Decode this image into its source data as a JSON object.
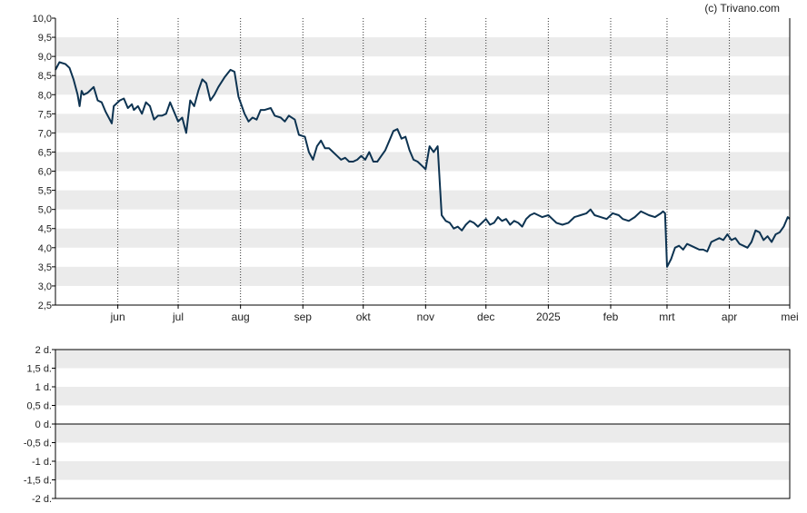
{
  "copyright": "(c) Trivano.com",
  "colors": {
    "line": "#0d3351",
    "band": "#ebebeb",
    "axis": "#000000",
    "vgrid": "#333333"
  },
  "chart_data": [
    {
      "type": "line",
      "title": "",
      "xlabel": "",
      "ylabel": "",
      "ylim": [
        2.5,
        10.0
      ],
      "xlim": [
        "2024-05-01",
        "2025-05-01"
      ],
      "grid": true,
      "legend": null,
      "ytick_labels": [
        "2,5",
        "3,0",
        "3,5",
        "4,0",
        "4,5",
        "5,0",
        "5,5",
        "6,0",
        "6,5",
        "7,0",
        "7,5",
        "8,0",
        "8,5",
        "9,0",
        "9,5",
        "10,0"
      ],
      "ytick_values": [
        2.5,
        3.0,
        3.5,
        4.0,
        4.5,
        5.0,
        5.5,
        6.0,
        6.5,
        7.0,
        7.5,
        8.0,
        8.5,
        9.0,
        9.5,
        10.0
      ],
      "xtick_labels": [
        "jun",
        "jul",
        "aug",
        "sep",
        "okt",
        "nov",
        "dec",
        "2025",
        "feb",
        "mrt",
        "apr",
        "mei"
      ],
      "xtick_dates": [
        "2024-06-01",
        "2024-07-01",
        "2024-08-01",
        "2024-09-01",
        "2024-10-01",
        "2024-11-01",
        "2024-12-01",
        "2025-01-01",
        "2025-02-01",
        "2025-03-01",
        "2025-04-01",
        "2025-05-01"
      ],
      "series": [
        {
          "points": [
            [
              "2024-05-01",
              8.65
            ],
            [
              "2024-05-03",
              8.85
            ],
            [
              "2024-05-06",
              8.8
            ],
            [
              "2024-05-08",
              8.7
            ],
            [
              "2024-05-10",
              8.4
            ],
            [
              "2024-05-12",
              8.0
            ],
            [
              "2024-05-13",
              7.7
            ],
            [
              "2024-05-14",
              8.1
            ],
            [
              "2024-05-15",
              8.0
            ],
            [
              "2024-05-17",
              8.05
            ],
            [
              "2024-05-18",
              8.1
            ],
            [
              "2024-05-20",
              8.2
            ],
            [
              "2024-05-22",
              7.85
            ],
            [
              "2024-05-24",
              7.8
            ],
            [
              "2024-05-26",
              7.55
            ],
            [
              "2024-05-28",
              7.35
            ],
            [
              "2024-05-29",
              7.25
            ],
            [
              "2024-05-30",
              7.7
            ],
            [
              "2024-06-02",
              7.85
            ],
            [
              "2024-06-04",
              7.9
            ],
            [
              "2024-06-06",
              7.65
            ],
            [
              "2024-06-08",
              7.75
            ],
            [
              "2024-06-09",
              7.6
            ],
            [
              "2024-06-11",
              7.7
            ],
            [
              "2024-06-13",
              7.5
            ],
            [
              "2024-06-15",
              7.8
            ],
            [
              "2024-06-17",
              7.7
            ],
            [
              "2024-06-19",
              7.35
            ],
            [
              "2024-06-21",
              7.45
            ],
            [
              "2024-06-23",
              7.45
            ],
            [
              "2024-06-25",
              7.5
            ],
            [
              "2024-06-27",
              7.8
            ],
            [
              "2024-06-29",
              7.55
            ],
            [
              "2024-07-01",
              7.3
            ],
            [
              "2024-07-03",
              7.4
            ],
            [
              "2024-07-05",
              7.0
            ],
            [
              "2024-07-07",
              7.85
            ],
            [
              "2024-07-09",
              7.7
            ],
            [
              "2024-07-11",
              8.1
            ],
            [
              "2024-07-13",
              8.4
            ],
            [
              "2024-07-15",
              8.3
            ],
            [
              "2024-07-17",
              7.85
            ],
            [
              "2024-07-19",
              8.0
            ],
            [
              "2024-07-21",
              8.2
            ],
            [
              "2024-07-24",
              8.45
            ],
            [
              "2024-07-27",
              8.65
            ],
            [
              "2024-07-29",
              8.6
            ],
            [
              "2024-07-31",
              7.95
            ],
            [
              "2024-08-03",
              7.5
            ],
            [
              "2024-08-05",
              7.3
            ],
            [
              "2024-08-07",
              7.4
            ],
            [
              "2024-08-09",
              7.35
            ],
            [
              "2024-08-11",
              7.6
            ],
            [
              "2024-08-13",
              7.6
            ],
            [
              "2024-08-16",
              7.65
            ],
            [
              "2024-08-18",
              7.45
            ],
            [
              "2024-08-21",
              7.4
            ],
            [
              "2024-08-23",
              7.3
            ],
            [
              "2024-08-25",
              7.45
            ],
            [
              "2024-08-28",
              7.35
            ],
            [
              "2024-08-30",
              6.95
            ],
            [
              "2024-09-02",
              6.9
            ],
            [
              "2024-09-04",
              6.5
            ],
            [
              "2024-09-06",
              6.3
            ],
            [
              "2024-09-08",
              6.65
            ],
            [
              "2024-09-10",
              6.8
            ],
            [
              "2024-09-12",
              6.6
            ],
            [
              "2024-09-14",
              6.6
            ],
            [
              "2024-09-16",
              6.5
            ],
            [
              "2024-09-18",
              6.4
            ],
            [
              "2024-09-20",
              6.3
            ],
            [
              "2024-09-22",
              6.35
            ],
            [
              "2024-09-24",
              6.25
            ],
            [
              "2024-09-26",
              6.25
            ],
            [
              "2024-09-28",
              6.3
            ],
            [
              "2024-09-30",
              6.4
            ],
            [
              "2024-10-02",
              6.3
            ],
            [
              "2024-10-04",
              6.5
            ],
            [
              "2024-10-06",
              6.25
            ],
            [
              "2024-10-08",
              6.25
            ],
            [
              "2024-10-10",
              6.4
            ],
            [
              "2024-10-12",
              6.55
            ],
            [
              "2024-10-14",
              6.8
            ],
            [
              "2024-10-16",
              7.05
            ],
            [
              "2024-10-18",
              7.1
            ],
            [
              "2024-10-20",
              6.85
            ],
            [
              "2024-10-22",
              6.9
            ],
            [
              "2024-10-24",
              6.55
            ],
            [
              "2024-10-26",
              6.3
            ],
            [
              "2024-10-28",
              6.25
            ],
            [
              "2024-10-30",
              6.15
            ],
            [
              "2024-11-01",
              6.05
            ],
            [
              "2024-11-03",
              6.65
            ],
            [
              "2024-11-05",
              6.5
            ],
            [
              "2024-11-07",
              6.65
            ],
            [
              "2024-11-09",
              4.85
            ],
            [
              "2024-11-11",
              4.7
            ],
            [
              "2024-11-13",
              4.65
            ],
            [
              "2024-11-15",
              4.5
            ],
            [
              "2024-11-17",
              4.55
            ],
            [
              "2024-11-19",
              4.45
            ],
            [
              "2024-11-21",
              4.6
            ],
            [
              "2024-11-23",
              4.7
            ],
            [
              "2024-11-25",
              4.65
            ],
            [
              "2024-11-27",
              4.55
            ],
            [
              "2024-11-29",
              4.65
            ],
            [
              "2024-12-01",
              4.75
            ],
            [
              "2024-12-03",
              4.6
            ],
            [
              "2024-12-05",
              4.65
            ],
            [
              "2024-12-07",
              4.8
            ],
            [
              "2024-12-09",
              4.7
            ],
            [
              "2024-12-11",
              4.75
            ],
            [
              "2024-12-13",
              4.6
            ],
            [
              "2024-12-15",
              4.7
            ],
            [
              "2024-12-17",
              4.65
            ],
            [
              "2024-12-19",
              4.55
            ],
            [
              "2024-12-21",
              4.75
            ],
            [
              "2024-12-23",
              4.85
            ],
            [
              "2024-12-25",
              4.9
            ],
            [
              "2024-12-27",
              4.85
            ],
            [
              "2024-12-29",
              4.8
            ],
            [
              "2025-01-01",
              4.85
            ],
            [
              "2025-01-03",
              4.75
            ],
            [
              "2025-01-05",
              4.65
            ],
            [
              "2025-01-08",
              4.6
            ],
            [
              "2025-01-11",
              4.65
            ],
            [
              "2025-01-14",
              4.8
            ],
            [
              "2025-01-17",
              4.85
            ],
            [
              "2025-01-20",
              4.9
            ],
            [
              "2025-01-22",
              5.0
            ],
            [
              "2025-01-24",
              4.85
            ],
            [
              "2025-01-27",
              4.8
            ],
            [
              "2025-01-30",
              4.75
            ],
            [
              "2025-02-02",
              4.9
            ],
            [
              "2025-02-05",
              4.85
            ],
            [
              "2025-02-07",
              4.75
            ],
            [
              "2025-02-10",
              4.7
            ],
            [
              "2025-02-13",
              4.8
            ],
            [
              "2025-02-16",
              4.95
            ],
            [
              "2025-02-18",
              4.9
            ],
            [
              "2025-02-20",
              4.85
            ],
            [
              "2025-02-23",
              4.8
            ],
            [
              "2025-02-26",
              4.9
            ],
            [
              "2025-02-27",
              4.95
            ],
            [
              "2025-02-28",
              4.9
            ],
            [
              "2025-03-01",
              3.5
            ],
            [
              "2025-03-03",
              3.7
            ],
            [
              "2025-03-05",
              4.0
            ],
            [
              "2025-03-07",
              4.05
            ],
            [
              "2025-03-09",
              3.95
            ],
            [
              "2025-03-11",
              4.1
            ],
            [
              "2025-03-13",
              4.05
            ],
            [
              "2025-03-15",
              4.0
            ],
            [
              "2025-03-17",
              3.95
            ],
            [
              "2025-03-19",
              3.95
            ],
            [
              "2025-03-21",
              3.9
            ],
            [
              "2025-03-23",
              4.15
            ],
            [
              "2025-03-25",
              4.2
            ],
            [
              "2025-03-27",
              4.25
            ],
            [
              "2025-03-29",
              4.2
            ],
            [
              "2025-03-31",
              4.35
            ],
            [
              "2025-04-02",
              4.2
            ],
            [
              "2025-04-04",
              4.25
            ],
            [
              "2025-04-06",
              4.1
            ],
            [
              "2025-04-08",
              4.05
            ],
            [
              "2025-04-10",
              4.0
            ],
            [
              "2025-04-12",
              4.15
            ],
            [
              "2025-04-14",
              4.45
            ],
            [
              "2025-04-16",
              4.4
            ],
            [
              "2025-04-18",
              4.2
            ],
            [
              "2025-04-20",
              4.3
            ],
            [
              "2025-04-22",
              4.15
            ],
            [
              "2025-04-24",
              4.35
            ],
            [
              "2025-04-26",
              4.4
            ],
            [
              "2025-04-28",
              4.55
            ],
            [
              "2025-04-30",
              4.8
            ],
            [
              "2025-05-01",
              4.75
            ]
          ]
        }
      ]
    },
    {
      "type": "bar",
      "title": "",
      "xlabel": "",
      "ylabel": "",
      "ylim": [
        -2,
        2
      ],
      "grid": true,
      "legend": null,
      "ytick_labels": [
        "2 d.",
        "1,5 d.",
        "1 d.",
        "0,5 d.",
        "0 d.",
        "-0,5 d.",
        "-1 d.",
        "-1,5 d.",
        "-2 d."
      ],
      "ytick_values": [
        2,
        1.5,
        1,
        0.5,
        0,
        -0.5,
        -1,
        -1.5,
        -2
      ],
      "values": []
    }
  ]
}
